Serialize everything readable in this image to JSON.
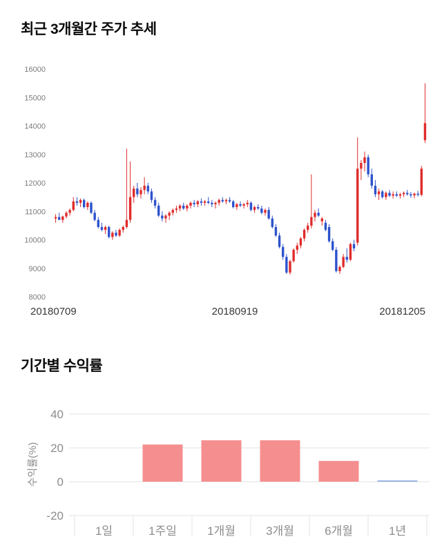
{
  "page": {
    "background": "#ffffff"
  },
  "chart_data": [
    {
      "type": "candlestick",
      "title": "최근 3개월간 주가 추세",
      "ylim": [
        8000,
        16000
      ],
      "y_ticks": [
        16000,
        15000,
        14000,
        13000,
        12000,
        11000,
        10000,
        9000,
        8000
      ],
      "x_labels": [
        "20180709",
        "20180919",
        "20181205"
      ],
      "up_color": "#e12b2b",
      "down_color": "#2d52cc",
      "axis_text_color": "#7a7a7a",
      "date_text_color": "#383838",
      "grid": false,
      "legend": "none",
      "candles": [
        [
          10750,
          10900,
          10600,
          10800
        ],
        [
          10800,
          10950,
          10700,
          10700
        ],
        [
          10700,
          10850,
          10600,
          10820
        ],
        [
          10820,
          11000,
          10750,
          10950
        ],
        [
          10950,
          11100,
          10850,
          11050
        ],
        [
          11050,
          11500,
          11000,
          11350
        ],
        [
          11350,
          11500,
          11200,
          11300
        ],
        [
          11300,
          11450,
          11150,
          11400
        ],
        [
          11400,
          11450,
          11100,
          11150
        ],
        [
          11150,
          11350,
          11050,
          11300
        ],
        [
          11300,
          11350,
          10900,
          10950
        ],
        [
          10950,
          11050,
          10650,
          10700
        ],
        [
          10700,
          10800,
          10400,
          10450
        ],
        [
          10450,
          10600,
          10300,
          10350
        ],
        [
          10350,
          10500,
          10200,
          10450
        ],
        [
          10450,
          10500,
          10050,
          10100
        ],
        [
          10100,
          10300,
          10000,
          10250
        ],
        [
          10250,
          10350,
          10100,
          10150
        ],
        [
          10150,
          10400,
          10100,
          10350
        ],
        [
          10350,
          10500,
          10250,
          10450
        ],
        [
          10450,
          13200,
          10400,
          10700
        ],
        [
          10700,
          12750,
          10600,
          11500
        ],
        [
          11500,
          11900,
          11300,
          11800
        ],
        [
          11800,
          12000,
          11500,
          11600
        ],
        [
          11600,
          11850,
          11450,
          11750
        ],
        [
          11750,
          12200,
          11600,
          11900
        ],
        [
          11900,
          12000,
          11600,
          11700
        ],
        [
          11700,
          11800,
          11300,
          11400
        ],
        [
          11400,
          11500,
          11100,
          11200
        ],
        [
          11200,
          11300,
          10800,
          10850
        ],
        [
          10850,
          11000,
          10650,
          10750
        ],
        [
          10750,
          10900,
          10600,
          10850
        ],
        [
          10850,
          11000,
          10700,
          10950
        ],
        [
          10950,
          11100,
          10850,
          11050
        ],
        [
          11050,
          11200,
          10950,
          11100
        ],
        [
          11100,
          11250,
          11000,
          11200
        ],
        [
          11200,
          11300,
          11050,
          11100
        ],
        [
          11100,
          11250,
          11000,
          11200
        ],
        [
          11200,
          11350,
          11100,
          11300
        ],
        [
          11300,
          11400,
          11150,
          11250
        ],
        [
          11250,
          11400,
          11150,
          11350
        ],
        [
          11350,
          11450,
          11200,
          11300
        ],
        [
          11300,
          11400,
          11200,
          11350
        ],
        [
          11350,
          11500,
          11250,
          11300
        ],
        [
          11300,
          11400,
          11150,
          11250
        ],
        [
          11250,
          11350,
          11100,
          11300
        ],
        [
          11300,
          11450,
          11200,
          11400
        ],
        [
          11400,
          11500,
          11300,
          11350
        ],
        [
          11350,
          11450,
          11250,
          11400
        ],
        [
          11400,
          11500,
          11300,
          11350
        ],
        [
          11350,
          11400,
          11100,
          11150
        ],
        [
          11150,
          11300,
          11050,
          11250
        ],
        [
          11250,
          11350,
          11150,
          11200
        ],
        [
          11200,
          11300,
          11100,
          11250
        ],
        [
          11250,
          11400,
          11150,
          11300
        ],
        [
          11300,
          11350,
          11000,
          11050
        ],
        [
          11050,
          11200,
          10950,
          11150
        ],
        [
          11150,
          11250,
          11050,
          11100
        ],
        [
          11100,
          11200,
          10900,
          10950
        ],
        [
          10950,
          11100,
          10850,
          11050
        ],
        [
          11050,
          11150,
          10700,
          10750
        ],
        [
          10750,
          10850,
          10400,
          10450
        ],
        [
          10450,
          10550,
          10100,
          10150
        ],
        [
          10150,
          10250,
          9700,
          9750
        ],
        [
          9750,
          9850,
          9300,
          9400
        ],
        [
          9400,
          9500,
          8800,
          8850
        ],
        [
          8850,
          9300,
          8780,
          9250
        ],
        [
          9250,
          9700,
          9200,
          9650
        ],
        [
          9650,
          9900,
          9500,
          9800
        ],
        [
          9800,
          10100,
          9700,
          10050
        ],
        [
          10050,
          10400,
          9950,
          10350
        ],
        [
          10350,
          10600,
          10250,
          10500
        ],
        [
          10500,
          12300,
          10400,
          10800
        ],
        [
          10800,
          11050,
          10650,
          10950
        ],
        [
          10950,
          11100,
          10800,
          10850
        ],
        [
          10650,
          10800,
          10500,
          10750
        ],
        [
          10600,
          10700,
          10300,
          10350
        ],
        [
          10450,
          10550,
          9900,
          9950
        ],
        [
          9950,
          10050,
          9600,
          9650
        ],
        [
          9650,
          9750,
          8850,
          8900
        ],
        [
          8900,
          9100,
          8800,
          9050
        ],
        [
          9050,
          9500,
          9000,
          9400
        ],
        [
          9400,
          9700,
          9200,
          9300
        ],
        [
          9300,
          9900,
          9250,
          9850
        ],
        [
          9850,
          10000,
          9600,
          9700
        ],
        [
          9900,
          13600,
          9800,
          12500
        ],
        [
          12500,
          12800,
          12100,
          12700
        ],
        [
          12700,
          13100,
          12400,
          12900
        ],
        [
          12900,
          13000,
          12200,
          12300
        ],
        [
          12300,
          12500,
          11800,
          11900
        ],
        [
          11900,
          12100,
          11500,
          11600
        ],
        [
          11600,
          11800,
          11400,
          11700
        ],
        [
          11700,
          11750,
          11450,
          11500
        ],
        [
          11500,
          11700,
          11400,
          11650
        ],
        [
          11650,
          11750,
          11500,
          11550
        ],
        [
          11550,
          11700,
          11450,
          11600
        ],
        [
          11600,
          11700,
          11500,
          11550
        ],
        [
          11550,
          11650,
          11450,
          11600
        ],
        [
          11600,
          11700,
          11500,
          11650
        ],
        [
          11650,
          11750,
          11550,
          11600
        ],
        [
          11600,
          11680,
          11480,
          11560
        ],
        [
          11560,
          11660,
          11460,
          11620
        ],
        [
          11620,
          11720,
          11520,
          11580
        ],
        [
          11580,
          12600,
          11530,
          12500
        ],
        [
          13500,
          15500,
          13400,
          14100
        ]
      ]
    },
    {
      "type": "bar",
      "title": "기간별 수익률",
      "ylabel": "수익률(%)",
      "ylim": [
        -20,
        40
      ],
      "y_ticks": [
        40,
        20,
        0,
        -20
      ],
      "categories": [
        "1일",
        "1주일",
        "1개월",
        "3개월",
        "6개월",
        "1년"
      ],
      "values": [
        0,
        22,
        24.5,
        24.5,
        12.3,
        0.2
      ],
      "bar_colors": [
        "#f58f8f",
        "#f58f8f",
        "#f58f8f",
        "#f58f8f",
        "#f58f8f",
        "#92acdf"
      ],
      "grid": true,
      "grid_color": "#e3e3e3",
      "axis_text_color": "#8c8c8c",
      "legend": "none"
    }
  ]
}
